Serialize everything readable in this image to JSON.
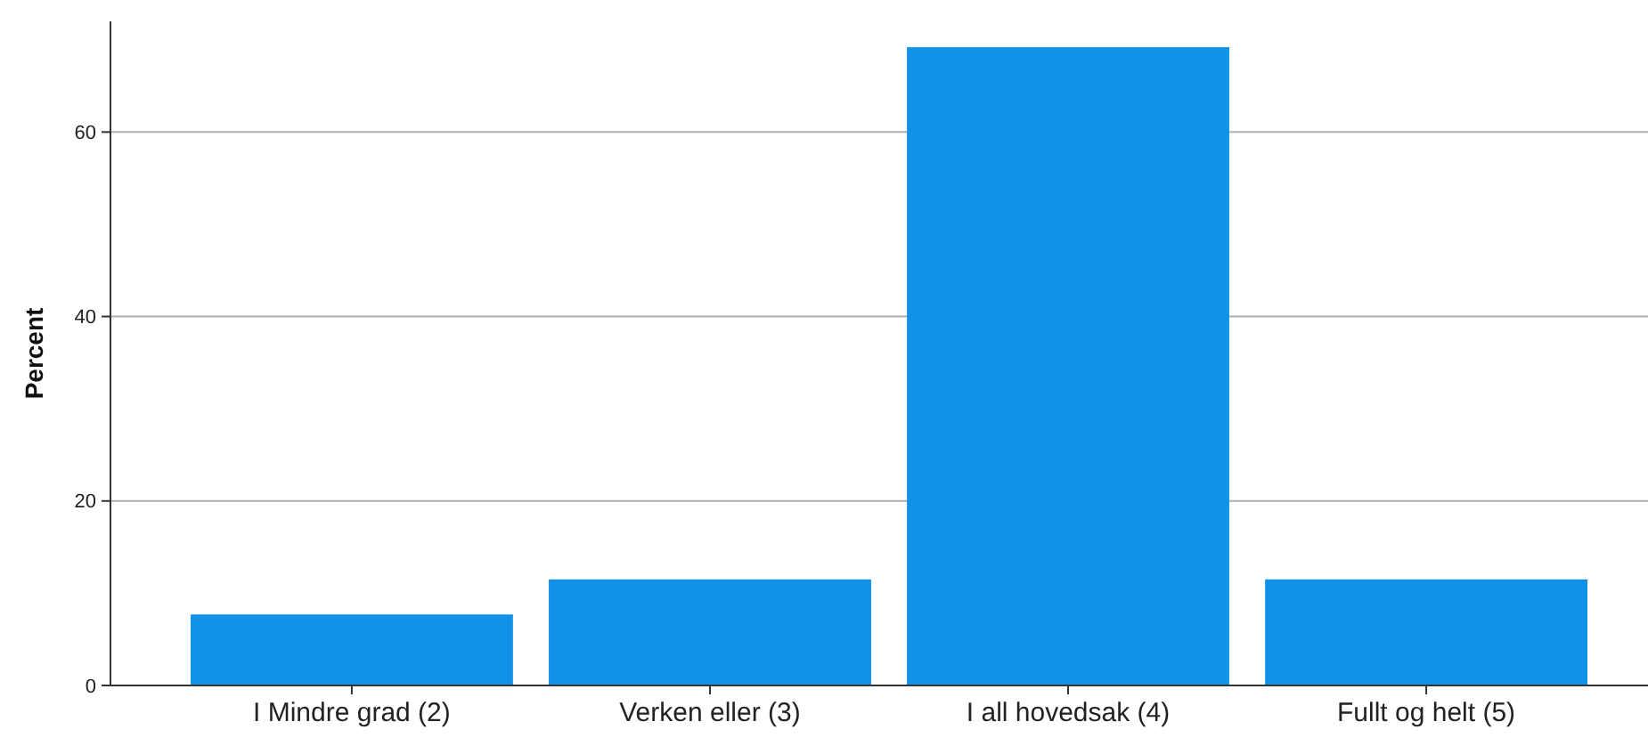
{
  "chart_data": {
    "type": "bar",
    "ylabel": "Percent",
    "categories": [
      "I Mindre grad (2)",
      "Verken eller (3)",
      "I all hovedsak (4)",
      "Fullt og helt (5)"
    ],
    "values": [
      7.7,
      11.5,
      69.2,
      11.5
    ],
    "color": "#1192e8",
    "ylim": [
      0,
      72
    ],
    "yticks": [
      0,
      20,
      40,
      60
    ],
    "grid": "y"
  }
}
